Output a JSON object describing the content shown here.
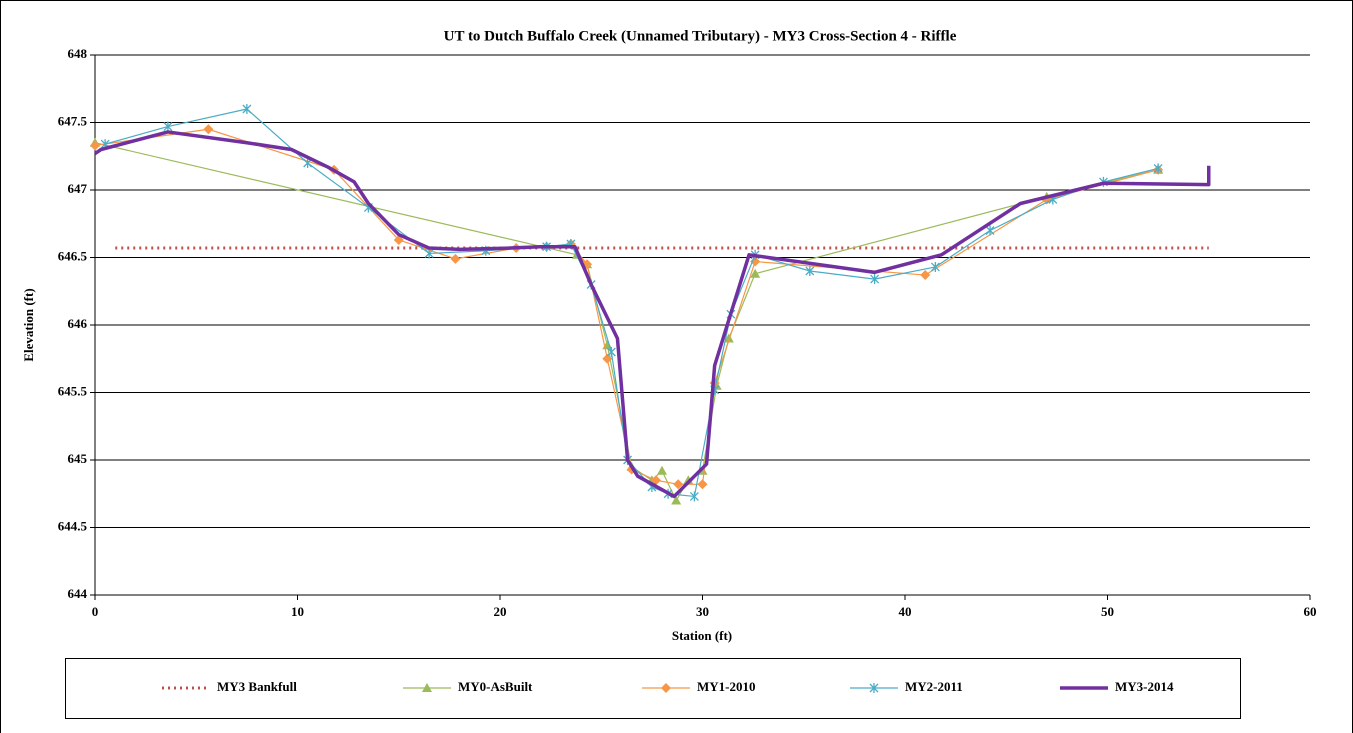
{
  "chart_data": {
    "type": "line",
    "title": "UT to Dutch Buffalo Creek (Unnamed Tributary)  - MY3 Cross-Section 4 - Riffle",
    "xlabel": "Station (ft)",
    "ylabel": "Elevation (ft)",
    "xlim": [
      0,
      60
    ],
    "xticks": [
      0,
      10,
      20,
      30,
      40,
      50,
      60
    ],
    "ylim": [
      644,
      648
    ],
    "yticks": [
      644,
      644.5,
      645,
      645.5,
      646,
      646.5,
      647,
      647.5,
      648
    ],
    "grid": true,
    "legend": "bottom",
    "series": [
      {
        "name": "MY3 Bankfull",
        "color": "#c0504d",
        "style": "dotted",
        "marker": "none",
        "x": [
          1,
          55
        ],
        "values": [
          646.57,
          646.57
        ]
      },
      {
        "name": "MY0-AsBuilt",
        "color": "#9bbb59",
        "style": "solid",
        "marker": "triangle",
        "x": [
          0,
          23.8,
          24.3,
          25.3,
          26.5,
          27.5,
          28,
          28.7,
          29.3,
          30,
          30.7,
          31.3,
          32.6,
          47,
          52.5
        ],
        "values": [
          647.35,
          646.52,
          646.45,
          645.85,
          644.95,
          644.85,
          644.92,
          644.7,
          644.85,
          644.92,
          645.55,
          645.9,
          646.38,
          646.95,
          647.15
        ]
      },
      {
        "name": "MY1-2010",
        "color": "#f79646",
        "style": "solid",
        "marker": "diamond",
        "x": [
          0,
          5.6,
          11.8,
          15,
          17.8,
          20.8,
          22.3,
          23.5,
          24.3,
          25.3,
          26.5,
          27.7,
          28.8,
          30,
          30.6,
          32.6,
          41,
          47,
          52.5
        ],
        "values": [
          647.33,
          647.45,
          647.15,
          646.63,
          646.49,
          646.57,
          646.58,
          646.6,
          646.45,
          645.75,
          644.93,
          644.85,
          644.82,
          644.82,
          645.57,
          646.47,
          646.37,
          646.93,
          647.15
        ]
      },
      {
        "name": "MY2-2011",
        "color": "#4bacc6",
        "style": "solid",
        "marker": "asterisk",
        "x": [
          0.5,
          3.6,
          7.5,
          10.5,
          13.5,
          16.5,
          19.3,
          22.3,
          23.5,
          24.5,
          25.5,
          26.3,
          27.5,
          28.3,
          29.6,
          30.6,
          31.4,
          32.6,
          35.3,
          38.5,
          41.5,
          44.2,
          47.3,
          49.8,
          52.5
        ],
        "values": [
          647.34,
          647.47,
          647.6,
          647.2,
          646.87,
          646.53,
          646.55,
          646.58,
          646.6,
          646.3,
          645.8,
          645,
          644.8,
          644.75,
          644.73,
          645.52,
          646.08,
          646.52,
          646.4,
          646.34,
          646.43,
          646.7,
          646.93,
          647.06,
          647.16
        ]
      },
      {
        "name": "MY3-2014",
        "color": "#7030a0",
        "style": "thick",
        "marker": "none",
        "x": [
          0,
          0.3,
          3.6,
          7.5,
          9.7,
          11.5,
          12.8,
          13.5,
          15,
          16.5,
          18,
          20.5,
          22,
          23.7,
          24.5,
          25.8,
          26.3,
          26.8,
          28.6,
          30.2,
          30.6,
          32.3,
          38.5,
          41.8,
          45.7,
          49.8,
          55,
          55
        ],
        "values": [
          647.27,
          647.3,
          647.43,
          647.35,
          647.3,
          647.17,
          647.06,
          646.9,
          646.67,
          646.57,
          646.56,
          646.57,
          646.58,
          646.58,
          646.3,
          645.9,
          645,
          644.88,
          644.73,
          644.97,
          645.7,
          646.52,
          646.39,
          646.52,
          646.9,
          647.05,
          647.04,
          647.18
        ]
      }
    ]
  }
}
